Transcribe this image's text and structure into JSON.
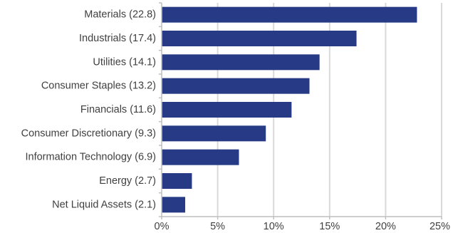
{
  "chart_data": {
    "type": "bar",
    "orientation": "horizontal",
    "categories": [
      "Materials (22.8)",
      "Industrials (17.4)",
      "Utilities (14.1)",
      "Consumer Staples (13.2)",
      "Financials (11.6)",
      "Consumer Discretionary (9.3)",
      "Information Technology (6.9)",
      "Energy (2.7)",
      "Net Liquid Assets (2.1)"
    ],
    "values": [
      22.8,
      17.4,
      14.1,
      13.2,
      11.6,
      9.3,
      6.9,
      2.7,
      2.1
    ],
    "xlim": [
      0,
      25
    ],
    "x_ticks": [
      0,
      5,
      10,
      15,
      20,
      25
    ],
    "x_tick_labels": [
      "0%",
      "5%",
      "10%",
      "15%",
      "20%",
      "25%"
    ],
    "title": "",
    "xlabel": "",
    "ylabel": "",
    "grid": "vertical",
    "legend": "none",
    "colors": {
      "bar": "#263a86",
      "grid": "#d9d9d9",
      "axis": "#bfbfbf",
      "text": "#404040"
    }
  }
}
